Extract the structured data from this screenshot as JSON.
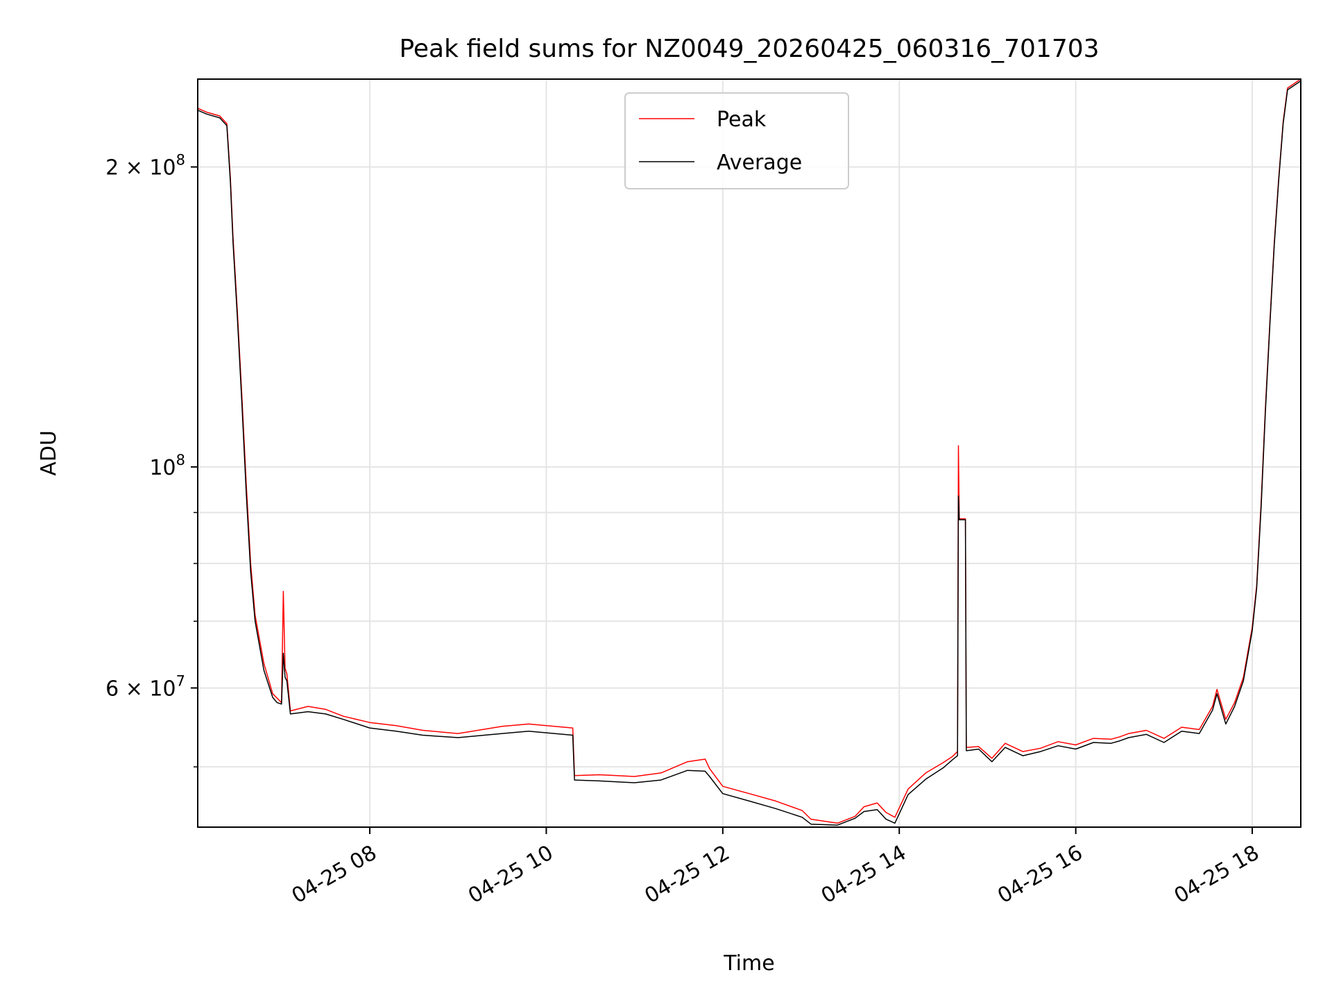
{
  "chart_data": {
    "type": "line",
    "title": "Peak field sums for NZ0049_20260425_060316_701703",
    "xlabel": "Time",
    "ylabel": "ADU",
    "yscale": "log",
    "xlim": [
      6.05,
      18.55
    ],
    "ylim": [
      43500000,
      245000000
    ],
    "grid": true,
    "legend_location": "upper center",
    "x_ticks": [
      {
        "value": 8,
        "label": "04-25 08"
      },
      {
        "value": 10,
        "label": "04-25 10"
      },
      {
        "value": 12,
        "label": "04-25 12"
      },
      {
        "value": 14,
        "label": "04-25 14"
      },
      {
        "value": 16,
        "label": "04-25 16"
      },
      {
        "value": 18,
        "label": "04-25 18"
      }
    ],
    "y_major_ticks": [
      {
        "value": 100000000,
        "label_base": "10",
        "label_exp": "8",
        "label_prefix": ""
      },
      {
        "value": 200000000,
        "label_base": "10",
        "label_exp": "8",
        "label_prefix": "2 × "
      },
      {
        "value": 60000000,
        "label_base": "10",
        "label_exp": "7",
        "label_prefix": "6 × "
      }
    ],
    "y_minor_grid": [
      50000000,
      70000000,
      80000000,
      90000000
    ],
    "series": [
      {
        "name": "Peak",
        "color": "#ff0000",
        "points": [
          [
            6.05,
            229000000
          ],
          [
            6.15,
            227000000
          ],
          [
            6.3,
            225000000
          ],
          [
            6.38,
            221000000
          ],
          [
            6.42,
            195000000
          ],
          [
            6.45,
            170000000
          ],
          [
            6.5,
            143000000
          ],
          [
            6.55,
            118000000
          ],
          [
            6.6,
            96000000
          ],
          [
            6.65,
            80000000
          ],
          [
            6.7,
            71000000
          ],
          [
            6.8,
            63500000
          ],
          [
            6.9,
            59200000
          ],
          [
            6.95,
            58600000
          ],
          [
            7.0,
            58000000
          ],
          [
            7.02,
            75000000
          ],
          [
            7.04,
            62800000
          ],
          [
            7.06,
            62000000
          ],
          [
            7.1,
            56900000
          ],
          [
            7.3,
            57500000
          ],
          [
            7.5,
            57100000
          ],
          [
            7.7,
            56200000
          ],
          [
            8.0,
            55400000
          ],
          [
            8.3,
            55000000
          ],
          [
            8.6,
            54400000
          ],
          [
            9.0,
            54000000
          ],
          [
            9.5,
            54900000
          ],
          [
            9.8,
            55200000
          ],
          [
            10.3,
            54700000
          ],
          [
            10.32,
            49000000
          ],
          [
            10.6,
            49100000
          ],
          [
            11.0,
            48900000
          ],
          [
            11.3,
            49300000
          ],
          [
            11.6,
            50600000
          ],
          [
            11.8,
            50900000
          ],
          [
            11.85,
            49800000
          ],
          [
            12.0,
            47800000
          ],
          [
            12.3,
            47000000
          ],
          [
            12.6,
            46200000
          ],
          [
            12.9,
            45200000
          ],
          [
            13.0,
            44300000
          ],
          [
            13.3,
            43900000
          ],
          [
            13.5,
            44600000
          ],
          [
            13.6,
            45600000
          ],
          [
            13.75,
            46000000
          ],
          [
            13.85,
            45000000
          ],
          [
            13.95,
            44500000
          ],
          [
            14.1,
            47500000
          ],
          [
            14.3,
            49300000
          ],
          [
            14.5,
            50500000
          ],
          [
            14.6,
            51200000
          ],
          [
            14.66,
            51800000
          ],
          [
            14.67,
            105000000
          ],
          [
            14.68,
            88700000
          ],
          [
            14.75,
            88700000
          ],
          [
            14.76,
            52300000
          ],
          [
            14.9,
            52400000
          ],
          [
            15.05,
            51000000
          ],
          [
            15.2,
            52800000
          ],
          [
            15.4,
            51800000
          ],
          [
            15.6,
            52200000
          ],
          [
            15.8,
            53000000
          ],
          [
            16.0,
            52600000
          ],
          [
            16.2,
            53400000
          ],
          [
            16.4,
            53300000
          ],
          [
            16.5,
            53600000
          ],
          [
            16.6,
            54000000
          ],
          [
            16.8,
            54400000
          ],
          [
            17.0,
            53400000
          ],
          [
            17.2,
            54800000
          ],
          [
            17.4,
            54500000
          ],
          [
            17.55,
            57500000
          ],
          [
            17.6,
            59800000
          ],
          [
            17.7,
            55800000
          ],
          [
            17.8,
            58000000
          ],
          [
            17.9,
            61500000
          ],
          [
            18.0,
            69000000
          ],
          [
            18.05,
            76000000
          ],
          [
            18.1,
            92000000
          ],
          [
            18.15,
            115000000
          ],
          [
            18.2,
            140000000
          ],
          [
            18.25,
            168000000
          ],
          [
            18.3,
            195000000
          ],
          [
            18.35,
            222000000
          ],
          [
            18.4,
            240000000
          ],
          [
            18.55,
            245000000
          ]
        ]
      },
      {
        "name": "Average",
        "color": "#000000",
        "points": [
          [
            6.05,
            228000000
          ],
          [
            6.15,
            226000000
          ],
          [
            6.3,
            224000000
          ],
          [
            6.38,
            220000000
          ],
          [
            6.42,
            193000000
          ],
          [
            6.45,
            168000000
          ],
          [
            6.5,
            141000000
          ],
          [
            6.55,
            116000000
          ],
          [
            6.6,
            94000000
          ],
          [
            6.65,
            78500000
          ],
          [
            6.7,
            70000000
          ],
          [
            6.8,
            62500000
          ],
          [
            6.9,
            58700000
          ],
          [
            6.95,
            58000000
          ],
          [
            7.0,
            57800000
          ],
          [
            7.02,
            65000000
          ],
          [
            7.04,
            61500000
          ],
          [
            7.06,
            61000000
          ],
          [
            7.1,
            56500000
          ],
          [
            7.3,
            56800000
          ],
          [
            7.5,
            56500000
          ],
          [
            7.7,
            55800000
          ],
          [
            8.0,
            54700000
          ],
          [
            8.3,
            54300000
          ],
          [
            8.6,
            53800000
          ],
          [
            9.0,
            53500000
          ],
          [
            9.5,
            54000000
          ],
          [
            9.8,
            54300000
          ],
          [
            10.3,
            53800000
          ],
          [
            10.32,
            48500000
          ],
          [
            10.6,
            48400000
          ],
          [
            11.0,
            48200000
          ],
          [
            11.3,
            48500000
          ],
          [
            11.6,
            49600000
          ],
          [
            11.8,
            49500000
          ],
          [
            11.85,
            48900000
          ],
          [
            12.0,
            47000000
          ],
          [
            12.3,
            46200000
          ],
          [
            12.6,
            45400000
          ],
          [
            12.9,
            44500000
          ],
          [
            13.0,
            43800000
          ],
          [
            13.3,
            43700000
          ],
          [
            13.5,
            44400000
          ],
          [
            13.6,
            45100000
          ],
          [
            13.75,
            45300000
          ],
          [
            13.85,
            44300000
          ],
          [
            13.95,
            43900000
          ],
          [
            14.1,
            46900000
          ],
          [
            14.3,
            48600000
          ],
          [
            14.5,
            49900000
          ],
          [
            14.6,
            50800000
          ],
          [
            14.66,
            51300000
          ],
          [
            14.67,
            93500000
          ],
          [
            14.68,
            88500000
          ],
          [
            14.75,
            88500000
          ],
          [
            14.76,
            51900000
          ],
          [
            14.9,
            52100000
          ],
          [
            15.05,
            50600000
          ],
          [
            15.2,
            52300000
          ],
          [
            15.4,
            51300000
          ],
          [
            15.6,
            51800000
          ],
          [
            15.8,
            52500000
          ],
          [
            16.0,
            52100000
          ],
          [
            16.2,
            52900000
          ],
          [
            16.4,
            52800000
          ],
          [
            16.5,
            53100000
          ],
          [
            16.6,
            53500000
          ],
          [
            16.8,
            53900000
          ],
          [
            17.0,
            52900000
          ],
          [
            17.2,
            54300000
          ],
          [
            17.4,
            54000000
          ],
          [
            17.55,
            57000000
          ],
          [
            17.6,
            59200000
          ],
          [
            17.7,
            55200000
          ],
          [
            17.8,
            57500000
          ],
          [
            17.9,
            61000000
          ],
          [
            18.0,
            68500000
          ],
          [
            18.05,
            75500000
          ],
          [
            18.1,
            91000000
          ],
          [
            18.15,
            114000000
          ],
          [
            18.2,
            139000000
          ],
          [
            18.25,
            167000000
          ],
          [
            18.3,
            194000000
          ],
          [
            18.35,
            221000000
          ],
          [
            18.4,
            239000000
          ],
          [
            18.55,
            244000000
          ]
        ]
      }
    ]
  }
}
